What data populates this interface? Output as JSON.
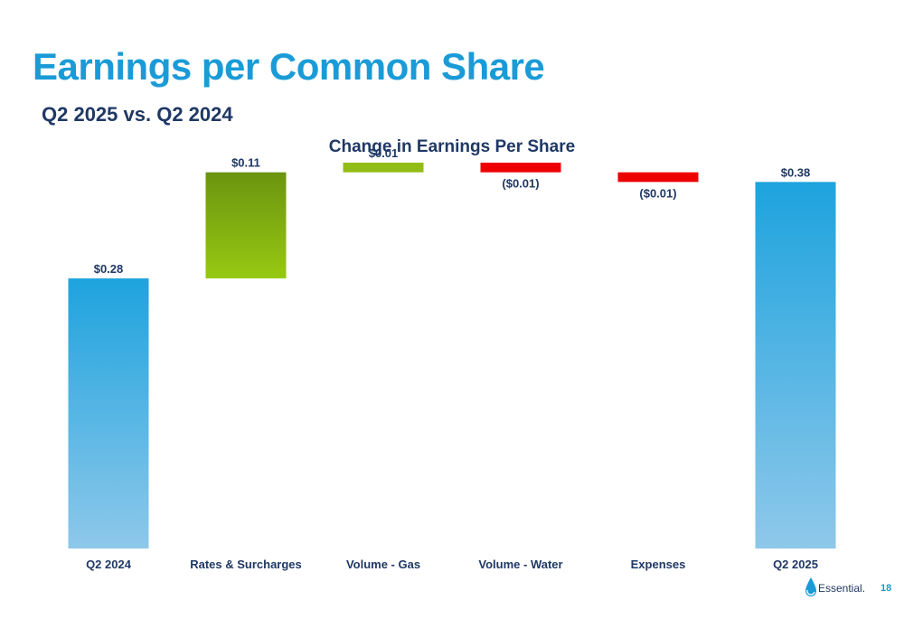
{
  "slide": {
    "title": "Earnings per Common Share",
    "subtitle": "Q2 2025 vs. Q2 2024",
    "page_number": "18",
    "logo_text": "Essential."
  },
  "colors": {
    "title": "#1a9bd7",
    "text_dark": "#1f3864",
    "total_top": "#1ea3de",
    "total_bottom": "#8ec8ea",
    "increase_big_top": "#6b9410",
    "increase_big_bottom": "#96c912",
    "increase_small": "#92bd16",
    "decrease": "#ee0000"
  },
  "chart_data": {
    "type": "bar",
    "subtype": "waterfall",
    "title": "Change in Earnings Per Share",
    "categories": [
      "Q2 2024",
      "Rates & Surcharges",
      "Volume - Gas",
      "Volume - Water",
      "Expenses",
      "Q2 2025"
    ],
    "values": [
      0.28,
      0.11,
      0.01,
      -0.01,
      -0.01,
      0.38
    ],
    "kinds": [
      "total",
      "increase",
      "increase",
      "decrease",
      "decrease",
      "total"
    ],
    "data_labels": [
      "$0.28",
      "$0.11",
      "$0.01",
      "($0.01)",
      "($0.01)",
      "$0.38"
    ],
    "ylim": [
      0,
      0.4
    ],
    "grid": false,
    "legend": "none"
  }
}
